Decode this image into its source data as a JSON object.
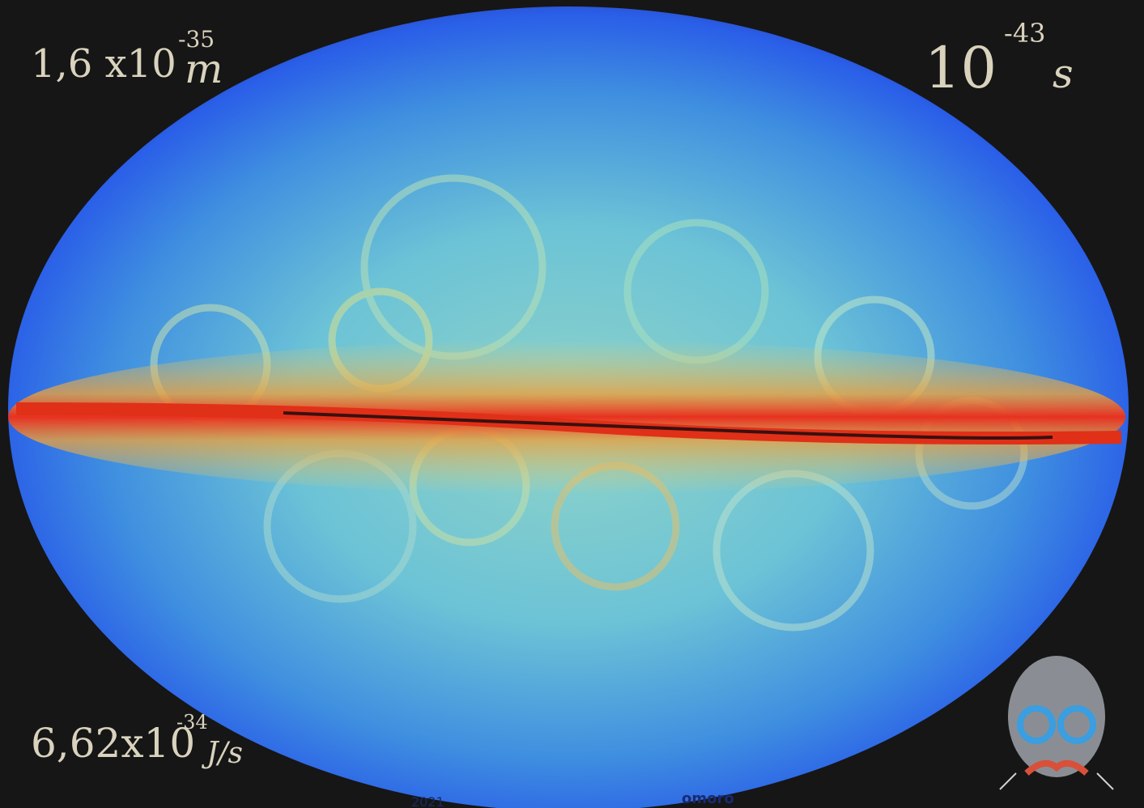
{
  "annotations": {
    "top_left": {
      "base": "1,6 x10",
      "exponent": "-35",
      "unit": "m"
    },
    "top_right": {
      "base": "10",
      "exponent": "-43",
      "unit": "s"
    },
    "bottom_left": {
      "base": "6,62x10",
      "exponent": "-34",
      "unit": "J/s"
    }
  },
  "signature": {
    "year": "2021",
    "name": "omoro"
  }
}
